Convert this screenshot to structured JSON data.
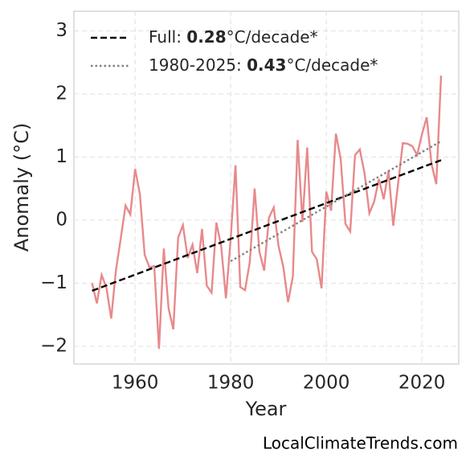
{
  "chart_data": {
    "type": "line",
    "xlabel": "Year",
    "ylabel": "Anomaly (°C)",
    "footer": "LocalClimateTrends.com",
    "xlim": [
      1947.2,
      2027.7
    ],
    "ylim": [
      -2.28,
      3.31
    ],
    "xticks": [
      1960,
      1980,
      2000,
      2020
    ],
    "yticks": [
      {
        "value": -2,
        "label": "−2"
      },
      {
        "value": -1,
        "label": "−1"
      },
      0,
      1,
      2,
      3
    ],
    "grid": true,
    "legend": "upper left",
    "series": [
      {
        "color": "#e8898b",
        "style": "solid",
        "x": [
          1951,
          1952,
          1953,
          1954,
          1955,
          1956,
          1957,
          1958,
          1959,
          1960,
          1961,
          1962,
          1963,
          1964,
          1965,
          1966,
          1967,
          1968,
          1969,
          1970,
          1971,
          1972,
          1973,
          1974,
          1975,
          1976,
          1977,
          1978,
          1979,
          1980,
          1981,
          1982,
          1983,
          1984,
          1985,
          1986,
          1987,
          1988,
          1989,
          1990,
          1991,
          1992,
          1993,
          1994,
          1995,
          1996,
          1997,
          1998,
          1999,
          2000,
          2001,
          2002,
          2003,
          2004,
          2005,
          2006,
          2007,
          2008,
          2009,
          2010,
          2011,
          2012,
          2013,
          2014,
          2015,
          2016,
          2017,
          2018,
          2019,
          2020,
          2021,
          2022,
          2023,
          2024
        ],
        "values": [
          -1.0,
          -1.32,
          -0.87,
          -1.07,
          -1.56,
          -0.79,
          -0.29,
          0.23,
          0.09,
          0.81,
          0.41,
          -0.55,
          -0.75,
          -0.73,
          -2.04,
          -0.45,
          -1.4,
          -1.73,
          -0.28,
          -0.08,
          -0.6,
          -0.39,
          -0.84,
          -0.14,
          -1.04,
          -1.15,
          -0.04,
          -0.41,
          -1.24,
          -0.29,
          0.87,
          -1.06,
          -1.11,
          -0.66,
          0.5,
          -0.5,
          -0.8,
          0.04,
          0.2,
          -0.41,
          -0.74,
          -1.3,
          -0.89,
          1.27,
          -0.03,
          1.15,
          -0.5,
          -0.62,
          -1.08,
          0.45,
          0.15,
          1.37,
          0.97,
          -0.06,
          -0.18,
          1.03,
          1.12,
          0.74,
          0.11,
          0.29,
          0.65,
          0.33,
          0.78,
          -0.09,
          0.57,
          1.22,
          1.21,
          1.17,
          1.03,
          1.36,
          1.63,
          0.89,
          0.57,
          2.29
        ]
      },
      {
        "name_parts": [
          "Full: ",
          "0.28",
          "°C/decade*"
        ],
        "color": "#000000",
        "style": "dashed",
        "x": [
          1951,
          2024
        ],
        "values": [
          -1.12,
          0.95
        ]
      },
      {
        "name_parts": [
          "1980-2025: ",
          "0.43",
          "°C/decade*"
        ],
        "color": "#808080",
        "style": "dotted",
        "x": [
          1980,
          2024
        ],
        "values": [
          -0.65,
          1.25
        ]
      }
    ]
  }
}
